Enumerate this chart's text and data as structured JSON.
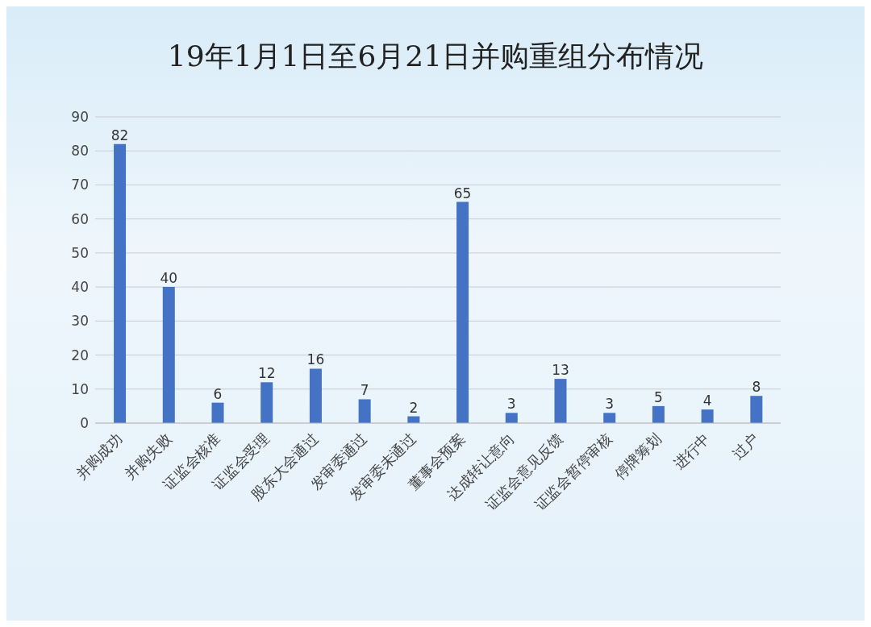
{
  "chart_data": {
    "type": "bar",
    "title": "19年1月1日至6月21日并购重组分布情况",
    "categories": [
      "并购成功",
      "并购失败",
      "证监会核准",
      "证监会受理",
      "股东大会通过",
      "发审委通过",
      "发审委未通过",
      "董事会预案",
      "达成转让意向",
      "证监会意见反馈",
      "证监会暂停审核",
      "停牌筹划",
      "进行中",
      "过户"
    ],
    "values": [
      82,
      40,
      6,
      12,
      16,
      7,
      2,
      65,
      3,
      13,
      3,
      5,
      4,
      8
    ],
    "color": "#4472c4",
    "ylim": [
      0,
      90
    ],
    "yticks": [
      0,
      10,
      20,
      30,
      40,
      50,
      60,
      70,
      80,
      90
    ],
    "grid": "y",
    "data_labels": true
  }
}
